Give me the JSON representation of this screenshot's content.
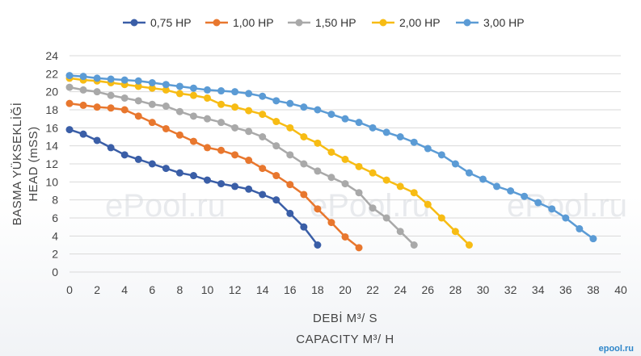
{
  "chart_data": {
    "type": "line",
    "title": "",
    "xlabel": "DEBİ M³/ S",
    "xlabel2": "CAPACITY M³/ H",
    "ylabel": "BASMA YÜKSEKLİĞİ",
    "ylabel2": "HEAD (mSS)",
    "xlim": [
      0,
      40
    ],
    "ylim": [
      0,
      24
    ],
    "xticks": [
      0,
      2,
      4,
      6,
      8,
      10,
      12,
      14,
      16,
      18,
      20,
      22,
      24,
      26,
      28,
      30,
      32,
      34,
      36,
      38,
      40
    ],
    "yticks": [
      0,
      2,
      4,
      6,
      8,
      10,
      12,
      14,
      16,
      18,
      20,
      22,
      24
    ],
    "grid": "horizontal",
    "legend": "top",
    "watermark": "ePool.ru",
    "corner_logo": "epool.ru",
    "series": [
      {
        "name": "0,75 HP",
        "color": "#3a5ea7",
        "x": [
          0,
          1,
          2,
          3,
          4,
          5,
          6,
          7,
          8,
          9,
          10,
          11,
          12,
          13,
          14,
          15,
          16,
          17,
          18
        ],
        "y": [
          15.8,
          15.3,
          14.6,
          13.8,
          13.0,
          12.5,
          12.0,
          11.5,
          11.0,
          10.7,
          10.2,
          9.8,
          9.5,
          9.2,
          8.6,
          8.0,
          6.5,
          5.0,
          3.0
        ]
      },
      {
        "name": "1,00 HP",
        "color": "#e8772e",
        "x": [
          0,
          1,
          2,
          3,
          4,
          5,
          6,
          7,
          8,
          9,
          10,
          11,
          12,
          13,
          14,
          15,
          16,
          17,
          18,
          19,
          20,
          21
        ],
        "y": [
          18.7,
          18.5,
          18.3,
          18.2,
          18.0,
          17.3,
          16.6,
          15.9,
          15.2,
          14.5,
          13.8,
          13.5,
          13.0,
          12.4,
          11.5,
          10.7,
          9.7,
          8.6,
          7.0,
          5.5,
          3.9,
          2.7
        ]
      },
      {
        "name": "1,50 HP",
        "color": "#a9a9a9",
        "x": [
          0,
          1,
          2,
          3,
          4,
          5,
          6,
          7,
          8,
          9,
          10,
          11,
          12,
          13,
          14,
          15,
          16,
          17,
          18,
          19,
          20,
          21,
          22,
          23,
          24,
          25
        ],
        "y": [
          20.5,
          20.2,
          20.0,
          19.6,
          19.3,
          19.0,
          18.6,
          18.4,
          17.8,
          17.3,
          17.0,
          16.6,
          16.0,
          15.6,
          15.0,
          14.0,
          13.0,
          12.0,
          11.2,
          10.5,
          9.8,
          8.8,
          7.1,
          6.0,
          4.5,
          3.0
        ]
      },
      {
        "name": "2,00 HP",
        "color": "#f7bc14",
        "x": [
          0,
          1,
          2,
          3,
          4,
          5,
          6,
          7,
          8,
          9,
          10,
          11,
          12,
          13,
          14,
          15,
          16,
          17,
          18,
          19,
          20,
          21,
          22,
          23,
          24,
          25,
          26,
          27,
          28,
          29
        ],
        "y": [
          21.5,
          21.3,
          21.2,
          21.0,
          20.8,
          20.6,
          20.4,
          20.2,
          19.8,
          19.6,
          19.3,
          18.6,
          18.3,
          17.9,
          17.5,
          16.7,
          16.0,
          15.0,
          14.3,
          13.3,
          12.5,
          11.7,
          11.0,
          10.2,
          9.5,
          8.8,
          7.5,
          6.0,
          4.5,
          3.0
        ]
      },
      {
        "name": "3,00 HP",
        "color": "#5b9bd5",
        "x": [
          0,
          1,
          2,
          3,
          4,
          5,
          6,
          7,
          8,
          9,
          10,
          11,
          12,
          13,
          14,
          15,
          16,
          17,
          18,
          19,
          20,
          21,
          22,
          23,
          24,
          25,
          26,
          27,
          28,
          29,
          30,
          31,
          32,
          33,
          34,
          35,
          36,
          37,
          38
        ],
        "y": [
          21.8,
          21.7,
          21.5,
          21.4,
          21.3,
          21.2,
          21.0,
          20.8,
          20.6,
          20.4,
          20.2,
          20.1,
          20.0,
          19.8,
          19.5,
          19.0,
          18.7,
          18.3,
          18.0,
          17.5,
          17.0,
          16.6,
          16.0,
          15.5,
          15.0,
          14.4,
          13.7,
          13.0,
          12.0,
          11.0,
          10.3,
          9.5,
          9.0,
          8.4,
          7.7,
          7.0,
          6.0,
          4.8,
          3.7
        ]
      }
    ]
  }
}
